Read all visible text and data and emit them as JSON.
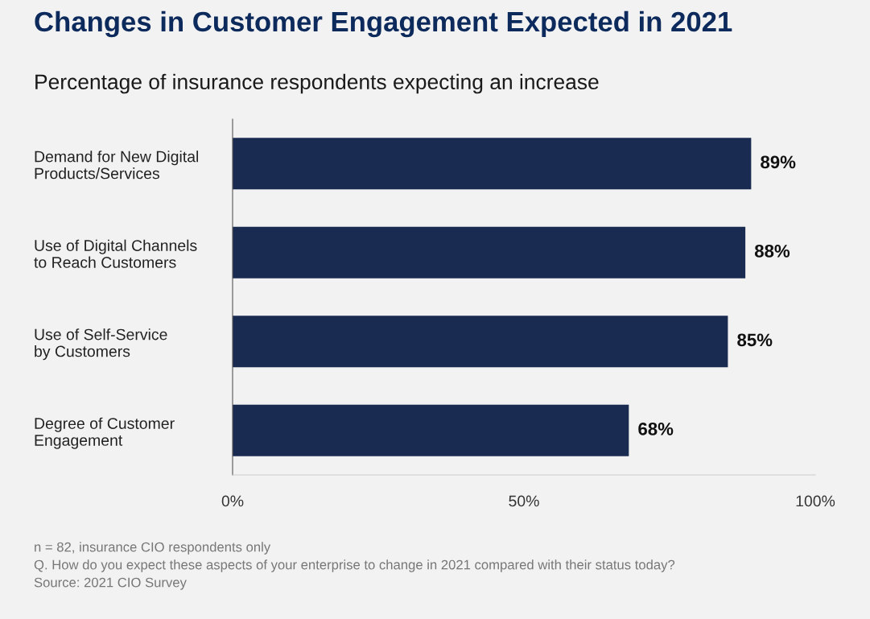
{
  "chart_data": {
    "type": "bar",
    "orientation": "horizontal",
    "title": "Changes in Customer Engagement Expected in 2021",
    "subtitle": "Percentage of insurance respondents expecting an increase",
    "categories": [
      "Demand for New Digital\nProducts/Services",
      "Use of Digital Channels\nto Reach Customers",
      "Use of Self-Service\nby Customers",
      "Degree of Customer\nEngagement"
    ],
    "values": [
      89,
      88,
      85,
      68
    ],
    "value_labels": [
      "89%",
      "88%",
      "85%",
      "68%"
    ],
    "color": "#1a2b52",
    "xlim": [
      0,
      100
    ],
    "xticks": [
      {
        "value": 0,
        "label": "0%"
      },
      {
        "value": 50,
        "label": "50%"
      },
      {
        "value": 100,
        "label": "100%"
      }
    ],
    "grid": false,
    "annotations": [
      "n = 82, insurance CIO respondents only",
      "Q. How do you expect these aspects of your enterprise to change in 2021 compared with their status today?",
      "Source: 2021 CIO Survey"
    ]
  }
}
